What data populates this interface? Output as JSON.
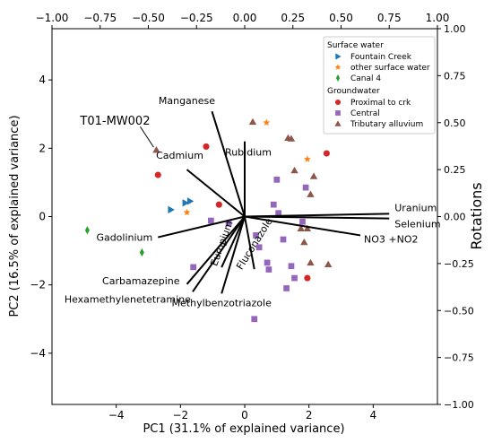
{
  "chart_data": {
    "type": "scatter",
    "xlabel": "PC1 (31.1% of explained variance)",
    "ylabel": "PC2 (16.5% of explained variance)",
    "xlim": [
      -6,
      6
    ],
    "ylim": [
      -5.5,
      5.5
    ],
    "xticks": [
      -4,
      -2,
      0,
      2,
      4
    ],
    "yticks": [
      -4,
      -2,
      0,
      2,
      4
    ],
    "top_axis": {
      "label": "",
      "lim": [
        -1.0,
        1.0
      ],
      "ticks": [
        -1.0,
        -0.75,
        -0.5,
        -0.25,
        0.0,
        0.25,
        0.5,
        0.75,
        1.0
      ],
      "tick_labels": [
        "−1.00",
        "−0.75",
        "−0.50",
        "−0.25",
        "0.00",
        "0.25",
        "0.50",
        "0.75",
        "1.00"
      ]
    },
    "right_axis": {
      "label": "Rotations",
      "lim": [
        -1.0,
        1.0
      ],
      "ticks": [
        -1.0,
        -0.75,
        -0.5,
        -0.25,
        0.0,
        0.25,
        0.5,
        0.75,
        1.0
      ],
      "tick_labels": [
        "−1.00",
        "−0.75",
        "−0.50",
        "−0.25",
        "0.00",
        "0.25",
        "0.50",
        "0.75",
        "1.00"
      ]
    },
    "x_tick_labels": [
      "−4",
      "−2",
      "0",
      "2",
      "4"
    ],
    "y_tick_labels": [
      "−4",
      "−2",
      "0",
      "2",
      "4"
    ],
    "series": [
      {
        "name": "Fountain Creek",
        "group": "Surface water",
        "marker": "triangle-right",
        "color": "#1f77b4",
        "points": [
          [
            -2.3,
            0.2
          ],
          [
            -1.85,
            0.4
          ],
          [
            -1.7,
            0.45
          ]
        ]
      },
      {
        "name": "other surface water",
        "group": "Surface water",
        "marker": "star",
        "color": "#ff7f0e",
        "points": [
          [
            -1.8,
            0.12
          ],
          [
            0.68,
            2.75
          ],
          [
            1.95,
            1.68
          ]
        ]
      },
      {
        "name": "Canal 4",
        "group": "Surface water",
        "marker": "diamond",
        "color": "#2ca02c",
        "points": [
          [
            -4.9,
            -0.4
          ],
          [
            -3.2,
            -1.05
          ]
        ]
      },
      {
        "name": "Proximal to crk",
        "group": "Groundwater",
        "marker": "circle",
        "color": "#d62728",
        "points": [
          [
            -2.7,
            1.22
          ],
          [
            -1.2,
            2.05
          ],
          [
            -0.8,
            0.35
          ],
          [
            2.55,
            1.85
          ],
          [
            1.95,
            -1.8
          ]
        ]
      },
      {
        "name": "Central",
        "group": "Groundwater",
        "marker": "square",
        "color": "#9467bd",
        "points": [
          [
            -1.05,
            -0.12
          ],
          [
            -0.5,
            -0.2
          ],
          [
            -1.6,
            -1.48
          ],
          [
            0.35,
            -0.55
          ],
          [
            0.45,
            -0.9
          ],
          [
            0.7,
            -1.35
          ],
          [
            0.75,
            -1.55
          ],
          [
            0.9,
            0.35
          ],
          [
            1.0,
            1.08
          ],
          [
            1.05,
            0.1
          ],
          [
            1.2,
            -0.67
          ],
          [
            1.45,
            -1.45
          ],
          [
            1.55,
            -1.8
          ],
          [
            1.3,
            -2.1
          ],
          [
            0.3,
            -3.0
          ],
          [
            1.8,
            -0.15
          ],
          [
            1.9,
            0.85
          ]
        ]
      },
      {
        "name": "Tributary alluvium",
        "group": "Groundwater",
        "marker": "triangle-up",
        "color": "#8c564b",
        "points": [
          [
            -2.75,
            1.95
          ],
          [
            0.25,
            2.77
          ],
          [
            1.35,
            2.3
          ],
          [
            1.45,
            2.28
          ],
          [
            1.55,
            1.35
          ],
          [
            2.05,
            0.65
          ],
          [
            2.15,
            1.18
          ],
          [
            1.75,
            -0.35
          ],
          [
            1.95,
            -0.35
          ],
          [
            1.85,
            -0.75
          ],
          [
            2.05,
            -1.35
          ],
          [
            2.6,
            -1.4
          ]
        ]
      }
    ],
    "loadings": [
      {
        "label": "Manganese",
        "x": -0.17,
        "y": 0.56
      },
      {
        "label": "Rubidium",
        "x": 0.0,
        "y": 0.4
      },
      {
        "label": "Cadmium",
        "x": -0.3,
        "y": 0.25
      },
      {
        "label": "Uranium",
        "x": 0.75,
        "y": 0.015
      },
      {
        "label": "Selenium",
        "x": 0.75,
        "y": -0.01
      },
      {
        "label": "NO3 +NO2",
        "x": 0.6,
        "y": -0.1
      },
      {
        "label": "Gadolinium",
        "x": -0.45,
        "y": -0.11
      },
      {
        "label": "Europium",
        "x": -0.12,
        "y": -0.27
      },
      {
        "label": "Fluconazole",
        "x": 0.05,
        "y": -0.28
      },
      {
        "label": "Carbamazepine",
        "x": -0.3,
        "y": -0.36
      },
      {
        "label": "Hexamethylenetetramine",
        "x": -0.27,
        "y": -0.4
      },
      {
        "label": "Methylbenzotriazole",
        "x": -0.12,
        "y": -0.41
      }
    ],
    "annotation": {
      "text": "T01-MW002",
      "point": [
        -2.75,
        1.95
      ]
    },
    "legend": {
      "placement": "top-right",
      "groups": [
        {
          "title": "Surface water",
          "entries": [
            "Fountain Creek",
            "other surface water",
            "Canal 4"
          ]
        },
        {
          "title": "Groundwater",
          "entries": [
            "Proximal to crk",
            "Central",
            "Tributary alluvium"
          ]
        }
      ]
    },
    "grid": false
  }
}
